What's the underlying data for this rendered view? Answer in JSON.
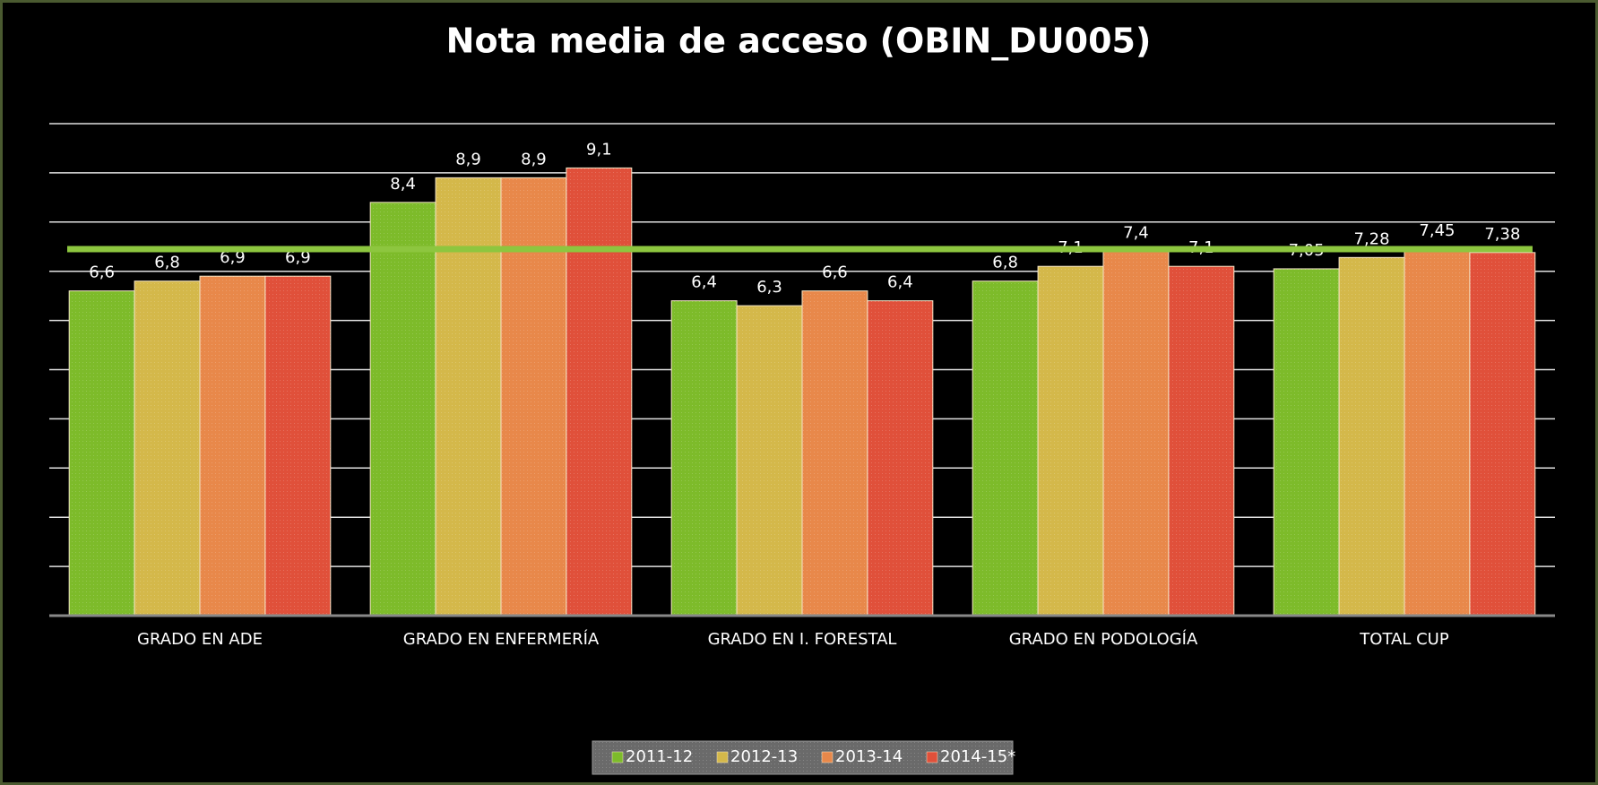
{
  "chart_data": {
    "type": "bar",
    "title": "Nota media de acceso (OBIN_DU005)",
    "categories": [
      "GRADO EN ADE",
      "GRADO EN ENFERMERÍA",
      "GRADO EN I. FORESTAL",
      "GRADO EN PODOLOGÍA",
      "TOTAL CUP"
    ],
    "series": [
      {
        "name": "2011-12",
        "color": "#7dbb2a",
        "values": [
          6.6,
          8.4,
          6.4,
          6.8,
          7.05
        ],
        "value_labels": [
          "6,6",
          "8,4",
          "6,4",
          "6,8",
          "7,05"
        ]
      },
      {
        "name": "2012-13",
        "color": "#d4b84a",
        "values": [
          6.8,
          8.9,
          6.3,
          7.1,
          7.28
        ],
        "value_labels": [
          "6,8",
          "8,9",
          "6,3",
          "7,1",
          "7,28"
        ]
      },
      {
        "name": "2013-14",
        "color": "#e8884a",
        "values": [
          6.9,
          8.9,
          6.6,
          7.4,
          7.45
        ],
        "value_labels": [
          "6,9",
          "8,9",
          "6,6",
          "7,4",
          "7,45"
        ]
      },
      {
        "name": "2014-15*",
        "color": "#e0503a",
        "values": [
          6.9,
          9.1,
          6.4,
          7.1,
          7.38
        ],
        "value_labels": [
          "6,9",
          "9,1",
          "6,4",
          "7,1",
          "7,38"
        ]
      }
    ],
    "reference_line": {
      "value": 7.45,
      "color": "#8dc63f"
    },
    "ylim": [
      0,
      10
    ],
    "yticks": [
      0,
      1,
      2,
      3,
      4,
      5,
      6,
      7,
      8,
      9,
      10
    ],
    "grid": true,
    "legend": "bottom"
  }
}
